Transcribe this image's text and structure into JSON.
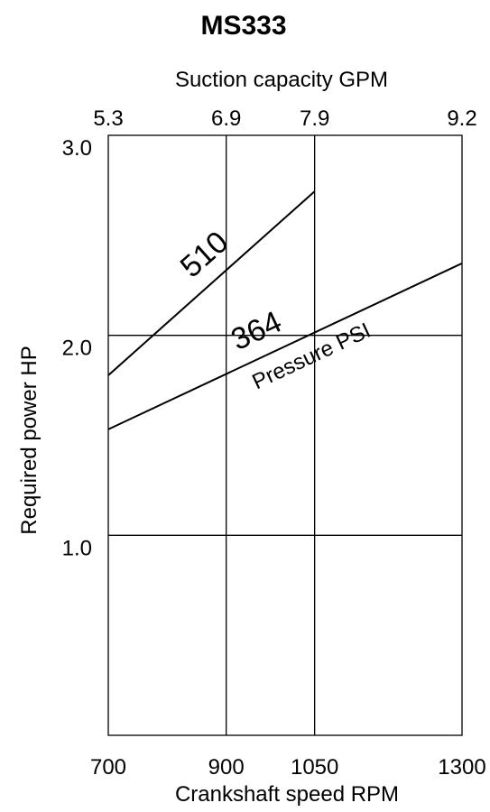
{
  "chart_data": {
    "type": "line",
    "title": "MS333",
    "xlabel": "Crankshaft speed RPM",
    "x2label": "Suction capacity GPM",
    "ylabel": "Required power  HP",
    "xlim": [
      700,
      1300
    ],
    "ylim": [
      0,
      3.0
    ],
    "x_ticks": [
      700,
      900,
      1050,
      1300
    ],
    "x_tick_labels": [
      "700",
      "900",
      "1050",
      "1300"
    ],
    "x2_tick_labels": [
      "5.3",
      "6.9",
      "7.9",
      "9.2"
    ],
    "y_ticks": [
      1.0,
      2.0,
      3.0
    ],
    "y_tick_labels": [
      "1.0",
      "2.0",
      "3.0"
    ],
    "grid": true,
    "annotation": "Pressure PSI",
    "series": [
      {
        "name": "510",
        "x": [
          700,
          1050
        ],
        "y": [
          1.8,
          2.72
        ]
      },
      {
        "name": "364",
        "x": [
          700,
          1300
        ],
        "y": [
          1.53,
          2.36
        ]
      }
    ],
    "colors": {
      "line": "#000000",
      "grid": "#000000",
      "background": "#ffffff"
    }
  }
}
